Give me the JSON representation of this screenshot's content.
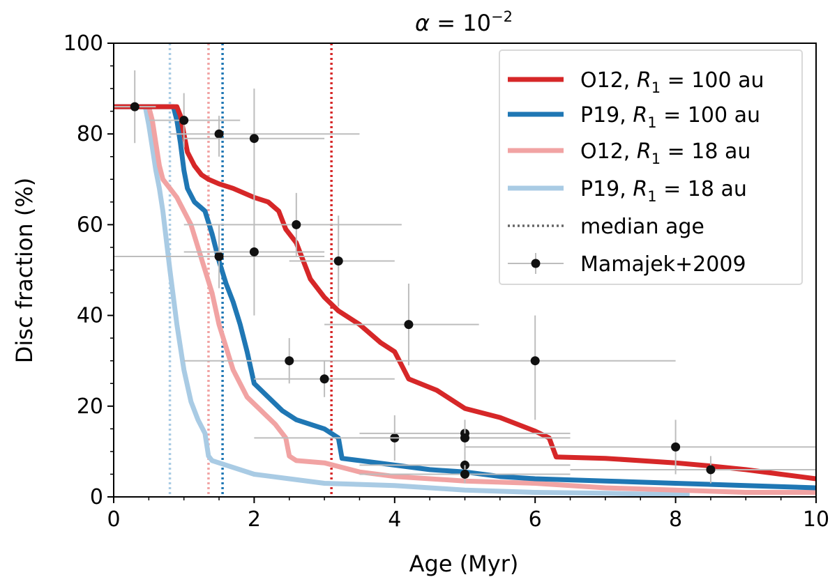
{
  "chart_data": {
    "type": "line",
    "title": "α = 10^−2",
    "title_parts": {
      "alpha": "α",
      "equals": " = 10",
      "exponent": "−2"
    },
    "xlabel": "Age (Myr)",
    "ylabel": "Disc fraction (%)",
    "xlim": [
      0,
      10
    ],
    "ylim": [
      0,
      100
    ],
    "x_ticks": [
      0,
      2,
      4,
      6,
      8,
      10
    ],
    "y_ticks": [
      0,
      20,
      40,
      60,
      80,
      100
    ],
    "x_tick_labels": [
      "0",
      "2",
      "4",
      "6",
      "8",
      "10"
    ],
    "y_tick_labels": [
      "0",
      "20",
      "40",
      "60",
      "80",
      "100"
    ],
    "grid": false,
    "legend_position": "top-right",
    "series": [
      {
        "name": "O12, R1 = 100 au",
        "legend_prefix": "O12, ",
        "legend_var": "R",
        "legend_sub": "1",
        "legend_suffix": " = 100 au",
        "color": "#d62728",
        "median_age": 3.1,
        "x": [
          0,
          0.9,
          0.95,
          1.0,
          1.05,
          1.15,
          1.25,
          1.35,
          1.5,
          1.7,
          2.0,
          2.2,
          2.35,
          2.45,
          2.6,
          2.7,
          2.8,
          3.0,
          3.2,
          3.5,
          3.8,
          4.0,
          4.1,
          4.2,
          4.6,
          5.0,
          5.5,
          6.0,
          6.2,
          6.3,
          7.0,
          8.0,
          8.5,
          9.0,
          9.5,
          10.0
        ],
        "y": [
          86,
          86,
          84,
          80,
          76,
          73,
          71,
          70,
          69,
          68,
          66,
          65,
          63,
          59,
          56,
          52,
          48,
          44,
          41,
          38,
          34,
          32,
          29,
          26,
          23.5,
          19.5,
          17.5,
          14.5,
          13,
          8.8,
          8.5,
          7.5,
          6.8,
          6,
          5,
          4
        ]
      },
      {
        "name": "P19, R1 = 100 au",
        "legend_prefix": "P19, ",
        "legend_var": "R",
        "legend_sub": "1",
        "legend_suffix": " = 100 au",
        "color": "#1f77b4",
        "median_age": 1.55,
        "x": [
          0,
          0.85,
          0.9,
          0.95,
          1.0,
          1.05,
          1.15,
          1.3,
          1.4,
          1.5,
          1.6,
          1.7,
          1.8,
          1.9,
          2.0,
          2.2,
          2.4,
          2.6,
          3.0,
          3.2,
          3.25,
          3.5,
          4.0,
          4.5,
          5.0,
          5.5,
          6.0,
          7.0,
          8.0,
          9.0,
          10.0
        ],
        "y": [
          86,
          86,
          83,
          78,
          72,
          68,
          65,
          63,
          58,
          52,
          47,
          43,
          38,
          32,
          25,
          22,
          19,
          17,
          15,
          13,
          8.5,
          8,
          7,
          6,
          5.5,
          4.5,
          4,
          3.5,
          3,
          2.5,
          2
        ]
      },
      {
        "name": "O12, R1 = 18 au",
        "legend_prefix": "O12, ",
        "legend_var": "R",
        "legend_sub": "1",
        "legend_suffix": " = 18 au",
        "color": "#f1a3a3",
        "median_age": 1.35,
        "x": [
          0,
          0.5,
          0.55,
          0.6,
          0.65,
          0.7,
          0.8,
          0.9,
          1.0,
          1.1,
          1.2,
          1.3,
          1.4,
          1.5,
          1.6,
          1.7,
          1.9,
          2.1,
          2.3,
          2.45,
          2.5,
          2.6,
          3.0,
          3.5,
          4.0,
          5.0,
          6.0,
          7.0,
          8.0,
          9.0,
          10.0
        ],
        "y": [
          86,
          86,
          83,
          78,
          73,
          70,
          68,
          66,
          63,
          60,
          55,
          50,
          45,
          38,
          33,
          28,
          22,
          19,
          16,
          13,
          9,
          8,
          7.5,
          5.5,
          4.5,
          3.5,
          3,
          2,
          1.5,
          1,
          1
        ]
      },
      {
        "name": "P19, R1 = 18 au",
        "legend_prefix": "P19, ",
        "legend_var": "R",
        "legend_sub": "1",
        "legend_suffix": " = 18 au",
        "color": "#a9cbe4",
        "median_age": 0.8,
        "x": [
          0,
          0.45,
          0.5,
          0.55,
          0.6,
          0.65,
          0.7,
          0.8,
          0.9,
          1.0,
          1.1,
          1.2,
          1.3,
          1.35,
          1.4,
          1.6,
          2.0,
          2.5,
          3.0,
          4.0,
          5.0,
          6.0,
          7.0,
          8.0,
          8.2
        ],
        "y": [
          86,
          86,
          82,
          77,
          72,
          68,
          63,
          50,
          38,
          28,
          21,
          17,
          14,
          9,
          8,
          7,
          5,
          4,
          3,
          2.5,
          1.5,
          1,
          0.8,
          0.5,
          0.5
        ]
      }
    ],
    "observations": {
      "name": "Mamajek+2009",
      "points": [
        {
          "x": 0.3,
          "y": 86,
          "xerr": [
            0.3,
            0.3
          ],
          "yerr": [
            8,
            8
          ]
        },
        {
          "x": 1.0,
          "y": 83,
          "xerr": [
            0.5,
            0.8
          ],
          "yerr": [
            6,
            6
          ]
        },
        {
          "x": 1.5,
          "y": 80,
          "xerr": [
            0.7,
            2.0
          ],
          "yerr": [
            5,
            4
          ]
        },
        {
          "x": 2.0,
          "y": 79,
          "xerr": [
            1.0,
            1.0
          ],
          "yerr": [
            11,
            11
          ]
        },
        {
          "x": 2.6,
          "y": 60,
          "xerr": [
            1.6,
            1.5
          ],
          "yerr": [
            7,
            7
          ]
        },
        {
          "x": 1.5,
          "y": 53,
          "xerr": [
            1.5,
            1.5
          ],
          "yerr": [
            7,
            7
          ]
        },
        {
          "x": 2.0,
          "y": 54,
          "xerr": [
            1.0,
            1.0
          ],
          "yerr": [
            14,
            14
          ]
        },
        {
          "x": 3.2,
          "y": 52,
          "xerr": [
            0.7,
            0.8
          ],
          "yerr": [
            10,
            10
          ]
        },
        {
          "x": 4.2,
          "y": 38,
          "xerr": [
            1.2,
            1.0
          ],
          "yerr": [
            9,
            9
          ]
        },
        {
          "x": 2.5,
          "y": 30,
          "xerr": [
            1.5,
            1.5
          ],
          "yerr": [
            5,
            5
          ]
        },
        {
          "x": 3.0,
          "y": 26,
          "xerr": [
            1.0,
            1.0
          ],
          "yerr": [
            4,
            4
          ]
        },
        {
          "x": 6.0,
          "y": 30,
          "xerr": [
            2.0,
            2.0
          ],
          "yerr": [
            13,
            10
          ]
        },
        {
          "x": 4.0,
          "y": 13,
          "xerr": [
            2.0,
            2.0
          ],
          "yerr": [
            5,
            5
          ]
        },
        {
          "x": 5.0,
          "y": 14,
          "xerr": [
            1.5,
            1.5
          ],
          "yerr": [
            3,
            3
          ]
        },
        {
          "x": 5.0,
          "y": 13,
          "xerr": [
            1.5,
            1.5
          ],
          "yerr": [
            3,
            3
          ]
        },
        {
          "x": 5.0,
          "y": 7,
          "xerr": [
            1.5,
            1.5
          ],
          "yerr": [
            3,
            3
          ]
        },
        {
          "x": 5.0,
          "y": 5,
          "xerr": [
            1.5,
            1.5
          ],
          "yerr": [
            2,
            2
          ]
        },
        {
          "x": 8.0,
          "y": 11,
          "xerr": [
            3.0,
            3.0
          ],
          "yerr": [
            6,
            6
          ]
        },
        {
          "x": 8.5,
          "y": 6,
          "xerr": [
            2.0,
            2.0
          ],
          "yerr": [
            3,
            3
          ]
        }
      ]
    },
    "legend_median": "median age",
    "legend_obs": "Mamajek+2009"
  }
}
